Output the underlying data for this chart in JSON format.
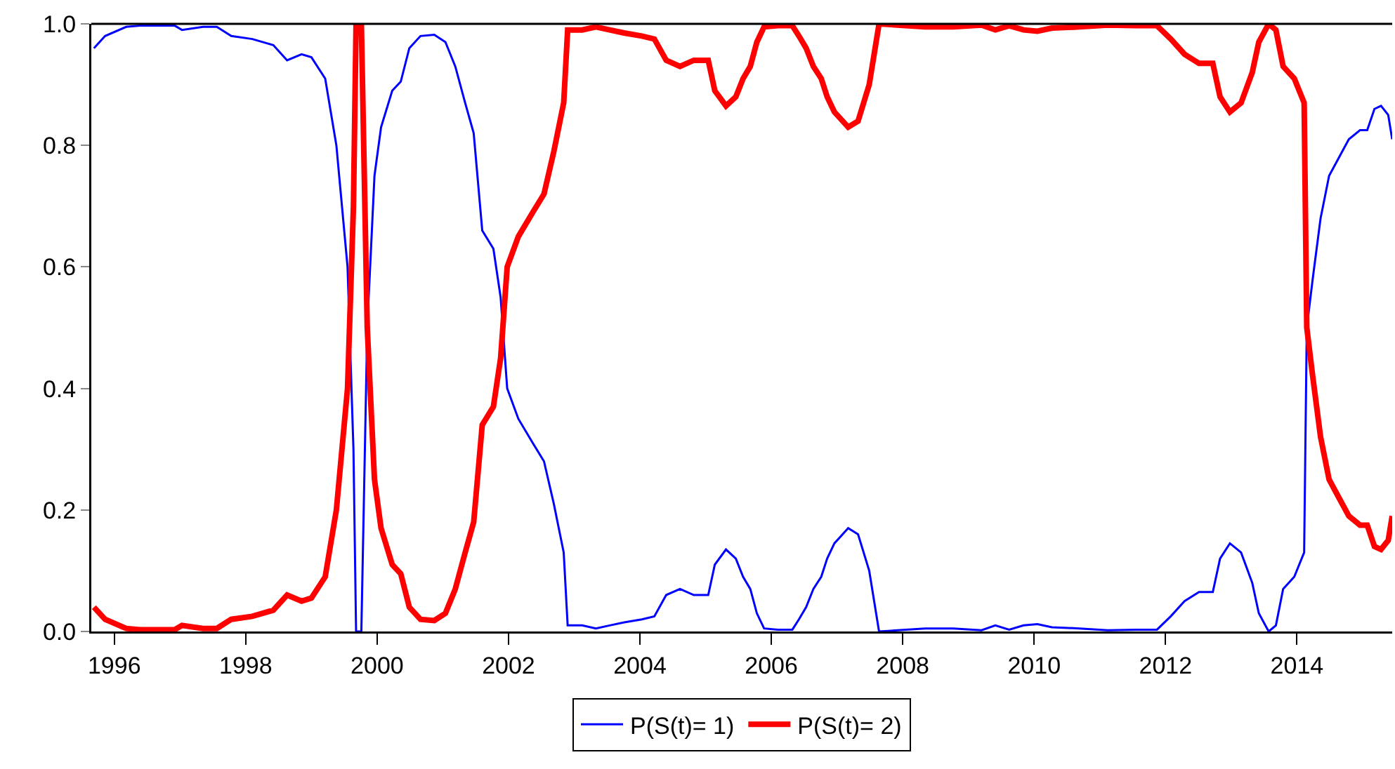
{
  "chart_data": {
    "type": "line",
    "legend": "bottom",
    "grid": false,
    "marker": "none",
    "line_style": "solid",
    "xlim": [
      1995.65,
      2015.45
    ],
    "xticks": [
      1996,
      1998,
      2000,
      2002,
      2004,
      2006,
      2008,
      2010,
      2012,
      2014
    ],
    "ylim": [
      0,
      1
    ],
    "yticks": [
      {
        "value": 0,
        "label": "0.0"
      },
      {
        "value": 0.2,
        "label": "0.2"
      },
      {
        "value": 0.4,
        "label": "0.4"
      },
      {
        "value": 0.6,
        "label": "0.6"
      },
      {
        "value": 0.8,
        "label": "0.8"
      },
      {
        "value": 1,
        "label": "1.0"
      }
    ],
    "x": [
      1995.69,
      1995.86,
      1996.18,
      1996.39,
      1996.92,
      1997.03,
      1997.35,
      1997.56,
      1997.78,
      1998.1,
      1998.42,
      1998.63,
      1998.85,
      1999.0,
      1999.21,
      1999.38,
      1999.55,
      1999.64,
      1999.68,
      1999.76,
      1999.85,
      1999.96,
      2000.06,
      2000.23,
      2000.36,
      2000.49,
      2000.66,
      2000.87,
      2001.04,
      2001.19,
      2001.34,
      2001.47,
      2001.6,
      2001.77,
      2001.88,
      2001.98,
      2002.15,
      2002.37,
      2002.54,
      2002.69,
      2002.84,
      2002.9,
      2003.12,
      2003.33,
      2003.54,
      2003.76,
      2004.03,
      2004.22,
      2004.4,
      2004.61,
      2004.82,
      2005.04,
      2005.14,
      2005.31,
      2005.46,
      2005.57,
      2005.68,
      2005.78,
      2005.89,
      2006.1,
      2006.32,
      2006.42,
      2006.53,
      2006.64,
      2006.76,
      2006.85,
      2006.96,
      2007.17,
      2007.32,
      2007.49,
      2007.64,
      2007.92,
      2008.34,
      2008.77,
      2009.2,
      2009.41,
      2009.62,
      2009.84,
      2010.05,
      2010.27,
      2010.69,
      2011.12,
      2011.55,
      2011.87,
      2012.08,
      2012.29,
      2012.51,
      2012.72,
      2012.83,
      2012.98,
      2013.15,
      2013.32,
      2013.42,
      2013.57,
      2013.68,
      2013.79,
      2013.96,
      2014.11,
      2014.15,
      2014.24,
      2014.36,
      2014.49,
      2014.64,
      2014.79,
      2014.96,
      2015.07,
      2015.18,
      2015.28,
      2015.39,
      2015.45
    ],
    "series": [
      {
        "name": "P(S(t)= 1)",
        "color": "#0000ff",
        "values": [
          0.96,
          0.98,
          0.995,
          0.997,
          0.997,
          0.99,
          0.995,
          0.995,
          0.98,
          0.975,
          0.965,
          0.94,
          0.95,
          0.945,
          0.91,
          0.8,
          0.6,
          0.3,
          0,
          0,
          0.5,
          0.75,
          0.83,
          0.89,
          0.905,
          0.96,
          0.98,
          0.982,
          0.97,
          0.93,
          0.87,
          0.82,
          0.66,
          0.63,
          0.55,
          0.4,
          0.35,
          0.31,
          0.28,
          0.21,
          0.13,
          0.01,
          0.01,
          0.005,
          0.01,
          0.015,
          0.02,
          0.025,
          0.06,
          0.07,
          0.06,
          0.06,
          0.11,
          0.135,
          0.12,
          0.09,
          0.07,
          0.03,
          0.005,
          0.003,
          0.003,
          0.02,
          0.04,
          0.07,
          0.09,
          0.12,
          0.145,
          0.17,
          0.16,
          0.1,
          0.0,
          0.002,
          0.005,
          0.005,
          0.002,
          0.01,
          0.003,
          0.01,
          0.012,
          0.007,
          0.005,
          0.002,
          0.003,
          0.003,
          0.025,
          0.05,
          0.065,
          0.065,
          0.12,
          0.145,
          0.13,
          0.08,
          0.03,
          0.0,
          0.01,
          0.07,
          0.09,
          0.13,
          0.5,
          0.58,
          0.68,
          0.75,
          0.78,
          0.81,
          0.825,
          0.825,
          0.86,
          0.865,
          0.85,
          0.81
        ]
      },
      {
        "name": "P(S(t)= 2)",
        "color": "#ff0000",
        "values": [
          0.04,
          0.02,
          0.005,
          0.003,
          0.003,
          0.01,
          0.005,
          0.005,
          0.02,
          0.025,
          0.035,
          0.06,
          0.05,
          0.055,
          0.09,
          0.2,
          0.4,
          0.7,
          1.0,
          1.0,
          0.5,
          0.25,
          0.17,
          0.11,
          0.095,
          0.04,
          0.02,
          0.018,
          0.03,
          0.07,
          0.13,
          0.18,
          0.34,
          0.37,
          0.45,
          0.6,
          0.65,
          0.69,
          0.72,
          0.79,
          0.87,
          0.99,
          0.99,
          0.995,
          0.99,
          0.985,
          0.98,
          0.975,
          0.94,
          0.93,
          0.94,
          0.94,
          0.89,
          0.865,
          0.88,
          0.91,
          0.93,
          0.97,
          0.995,
          0.997,
          0.997,
          0.98,
          0.96,
          0.93,
          0.91,
          0.88,
          0.855,
          0.83,
          0.84,
          0.9,
          1.0,
          0.998,
          0.995,
          0.995,
          0.998,
          0.99,
          0.997,
          0.99,
          0.988,
          0.993,
          0.995,
          0.998,
          0.997,
          0.997,
          0.975,
          0.95,
          0.935,
          0.935,
          0.88,
          0.855,
          0.87,
          0.92,
          0.97,
          1.0,
          0.99,
          0.93,
          0.91,
          0.87,
          0.5,
          0.42,
          0.32,
          0.25,
          0.22,
          0.19,
          0.175,
          0.175,
          0.14,
          0.135,
          0.15,
          0.19
        ]
      }
    ]
  }
}
